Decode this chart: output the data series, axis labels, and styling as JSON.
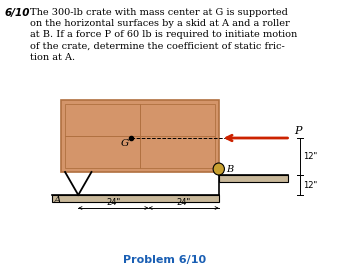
{
  "bg_color": "#ffffff",
  "crate_color": "#d4956a",
  "crate_border": "#b07040",
  "ground_color": "#c8b89a",
  "roller_color": "#c8a030",
  "arrow_color": "#cc2200",
  "problem_color": "#1a5fb4",
  "title_bold": "6/10",
  "caption": "Problem 6/10",
  "label_P": "P",
  "label_G": "G",
  "label_B": "B",
  "label_A": "A",
  "dim_24a": "24\"",
  "dim_24b": "24\"",
  "dim_12a": "12\"",
  "dim_12b": "12\"",
  "text_lines": [
    "The 300-lb crate with mass center at G is supported",
    "on the horizontal surfaces by a skid at A and a roller",
    "at B. If a force P of 60 lb is required to initiate motion",
    "of the crate, determine the coefficient of static fric-",
    "tion at A."
  ]
}
